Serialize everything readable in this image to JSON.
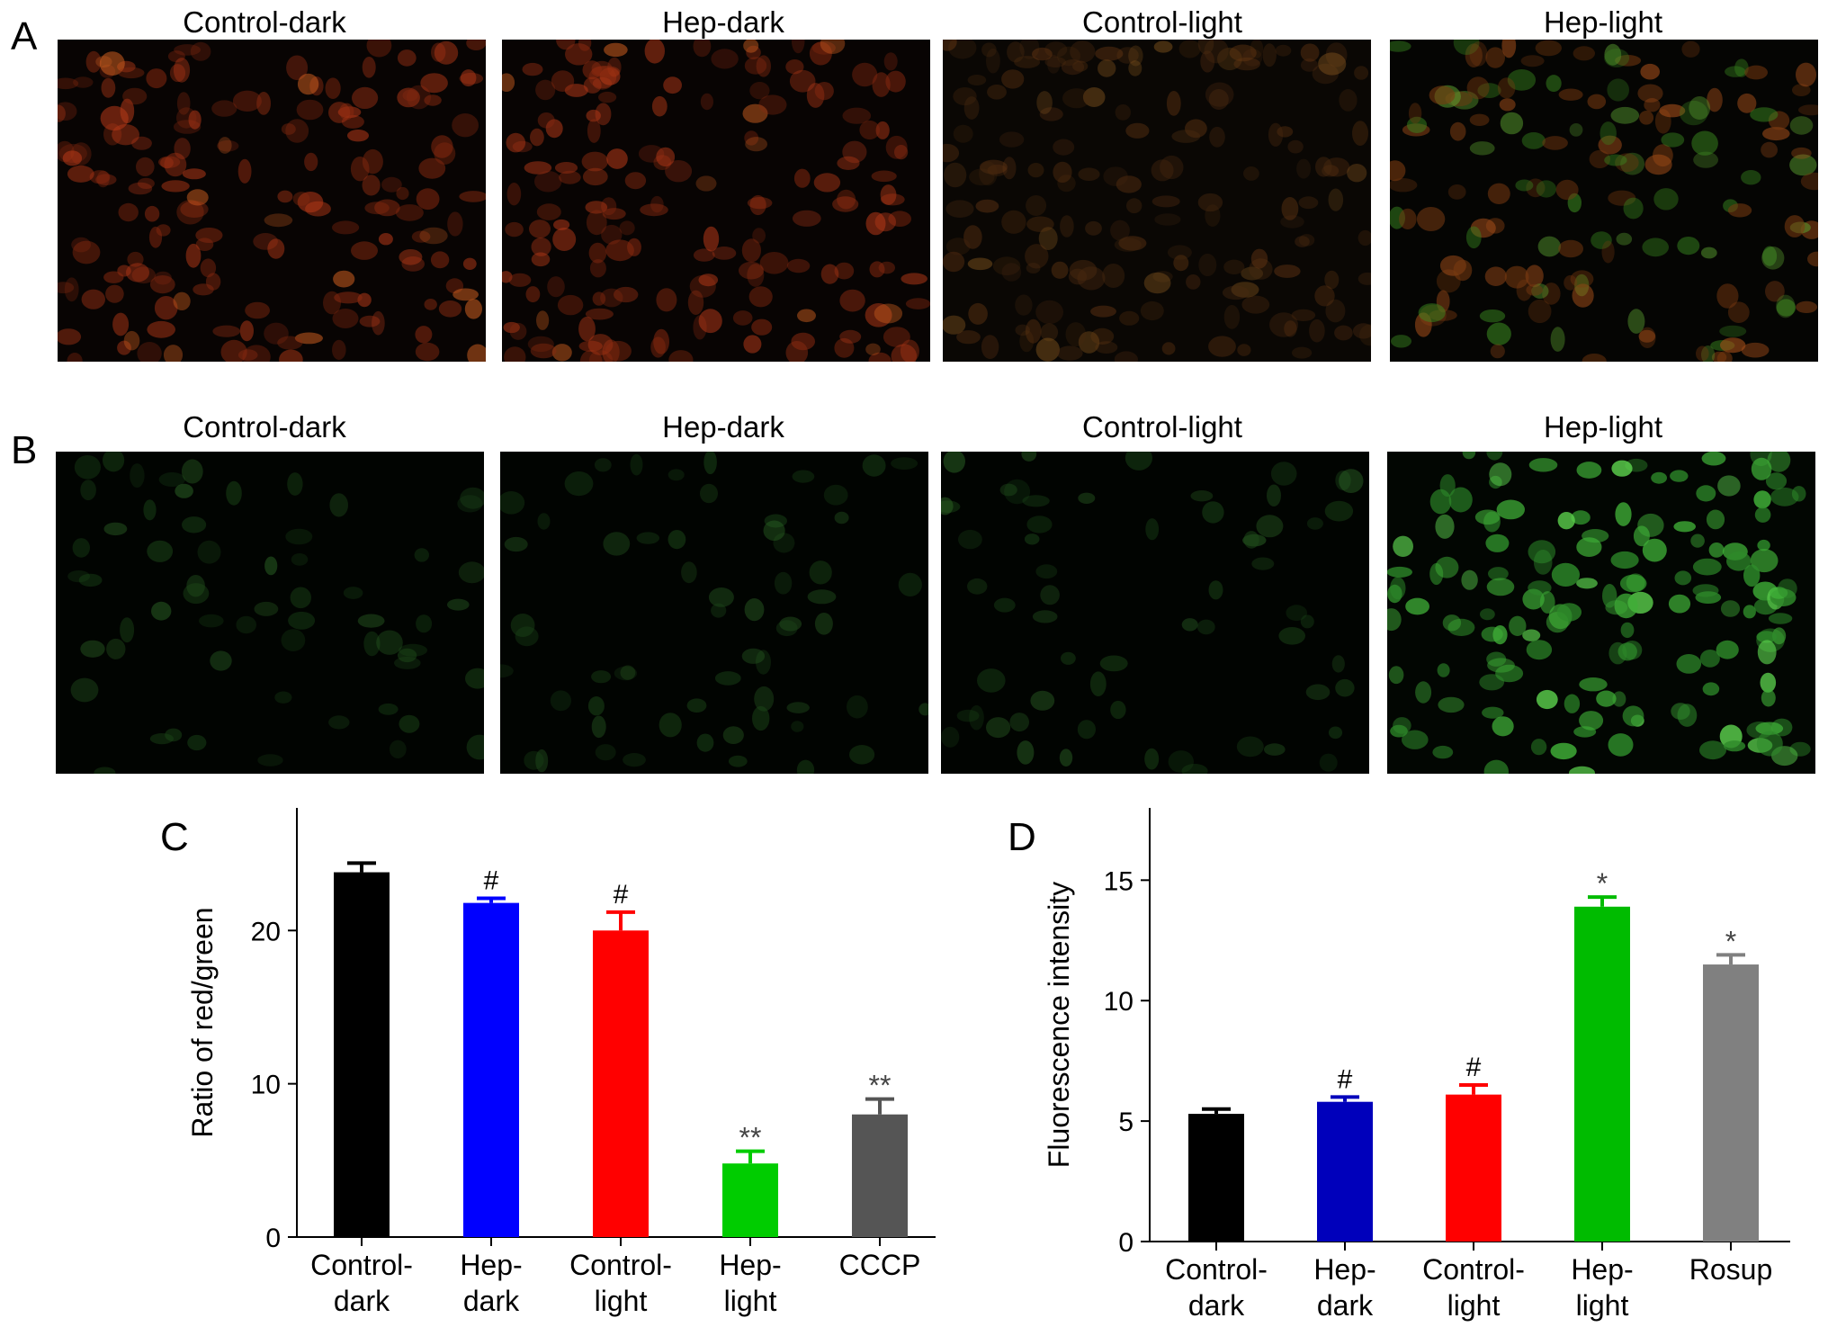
{
  "panels": {
    "a": {
      "letter": "A",
      "images": [
        {
          "title": "Control-dark",
          "tone": "red-dim"
        },
        {
          "title": "Hep-dark",
          "tone": "red-dim"
        },
        {
          "title": "Control-light",
          "tone": "red-faint"
        },
        {
          "title": "Hep-light",
          "tone": "red-green-mixed"
        }
      ]
    },
    "b": {
      "letter": "B",
      "images": [
        {
          "title": "Control-dark",
          "tone": "green-faint"
        },
        {
          "title": "Hep-dark",
          "tone": "green-faint"
        },
        {
          "title": "Control-light",
          "tone": "green-faint"
        },
        {
          "title": "Hep-light",
          "tone": "green-bright"
        }
      ]
    },
    "c": {
      "letter": "C"
    },
    "d": {
      "letter": "D"
    }
  },
  "chart_data": [
    {
      "type": "bar",
      "panel": "C",
      "ylabel": "Ratio of red/green",
      "ylim": [
        0,
        28
      ],
      "yticks": [
        0,
        10,
        20
      ],
      "categories": [
        "Control-\ndark",
        "Hep-\ndark",
        "Control-\nlight",
        "Hep-\nlight",
        "CCCP"
      ],
      "values": [
        23.8,
        21.8,
        20.0,
        4.8,
        8.0
      ],
      "errors": [
        0.6,
        0.3,
        1.2,
        0.8,
        1.0
      ],
      "significance": [
        "",
        "#",
        "#",
        "**",
        "**"
      ],
      "colors": [
        "#000000",
        "#0000ff",
        "#ff0000",
        "#00cc00",
        "#555555"
      ]
    },
    {
      "type": "bar",
      "panel": "D",
      "ylabel": "Fluorescence intensity",
      "ylim": [
        0,
        18
      ],
      "yticks": [
        0,
        5,
        10,
        15
      ],
      "categories": [
        "Control-\ndark",
        "Hep-\ndark",
        "Control-\nlight",
        "Hep-\nlight",
        "Rosup"
      ],
      "values": [
        5.3,
        5.8,
        6.1,
        13.9,
        11.5
      ],
      "errors": [
        0.2,
        0.2,
        0.4,
        0.4,
        0.4
      ],
      "significance": [
        "",
        "#",
        "#",
        "*",
        "*"
      ],
      "colors": [
        "#000000",
        "#0000bb",
        "#ff0000",
        "#00bb00",
        "#808080"
      ]
    }
  ]
}
